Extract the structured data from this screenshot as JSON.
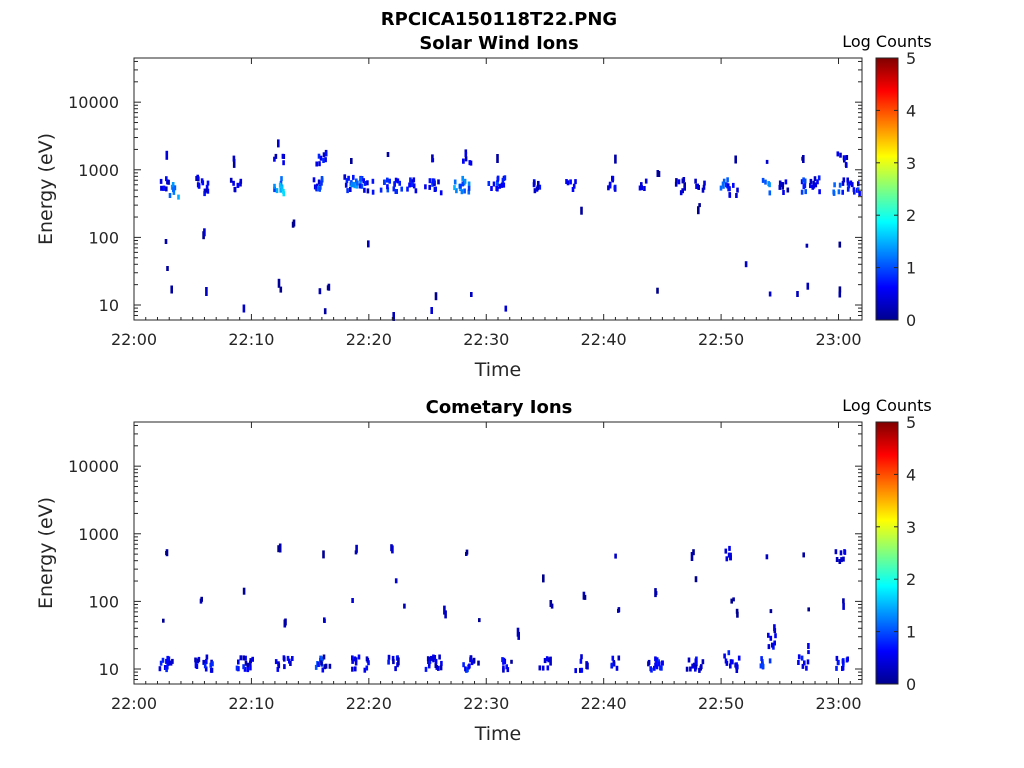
{
  "figure_title": "RPCICA150118T22.PNG",
  "chart_data": [
    {
      "type": "heatmap",
      "title": "Solar Wind Ions",
      "xlabel": "Time",
      "ylabel": "Energy (eV)",
      "x_tick_labels": [
        "22:00",
        "22:10",
        "22:20",
        "22:30",
        "22:40",
        "22:50",
        "23:00"
      ],
      "x_tick_minutes": [
        0,
        10,
        20,
        30,
        40,
        50,
        60
      ],
      "xlim_minutes": [
        0,
        62
      ],
      "y_scale": "log",
      "y_tick_labels": [
        "10",
        "100",
        "1000",
        "10000"
      ],
      "y_tick_values": [
        10,
        100,
        1000,
        10000
      ],
      "ylim": [
        6,
        45000
      ],
      "colorbar": {
        "label": "Log Counts",
        "range": [
          0,
          5
        ],
        "tick_labels": [
          "0",
          "1",
          "2",
          "3",
          "4",
          "5"
        ],
        "colormap": "jet"
      },
      "grid": false,
      "blobs": [
        {
          "t": 2.6,
          "e": 600,
          "c": 0.5
        },
        {
          "t": 2.8,
          "e": 1500,
          "c": 0.3
        },
        {
          "t": 3.4,
          "e": 500,
          "c": 1.3
        },
        {
          "t": 5.4,
          "e": 620,
          "c": 0.4
        },
        {
          "t": 5.9,
          "e": 520,
          "c": 0.6
        },
        {
          "t": 6.1,
          "e": 430,
          "c": 0.2
        },
        {
          "t": 8.7,
          "e": 620,
          "c": 0.5
        },
        {
          "t": 8.6,
          "e": 1400,
          "c": 0.3
        },
        {
          "t": 12.2,
          "e": 600,
          "c": 1.1
        },
        {
          "t": 12.4,
          "e": 560,
          "c": 1.5
        },
        {
          "t": 12.4,
          "e": 1500,
          "c": 0.4
        },
        {
          "t": 12.3,
          "e": 2600,
          "c": 0.2
        },
        {
          "t": 15.5,
          "e": 600,
          "c": 0.6
        },
        {
          "t": 16.1,
          "e": 620,
          "c": 1.1
        },
        {
          "t": 16.0,
          "e": 1500,
          "c": 0.6
        },
        {
          "t": 18.3,
          "e": 620,
          "c": 0.6
        },
        {
          "t": 18.9,
          "e": 600,
          "c": 1.2
        },
        {
          "t": 19.4,
          "e": 600,
          "c": 0.9
        },
        {
          "t": 20.0,
          "e": 560,
          "c": 0.5
        },
        {
          "t": 18.6,
          "e": 1500,
          "c": 0.3
        },
        {
          "t": 21.4,
          "e": 620,
          "c": 0.8
        },
        {
          "t": 22.5,
          "e": 600,
          "c": 0.7
        },
        {
          "t": 23.6,
          "e": 620,
          "c": 0.6
        },
        {
          "t": 21.7,
          "e": 1500,
          "c": 0.3
        },
        {
          "t": 25.2,
          "e": 620,
          "c": 0.7
        },
        {
          "t": 25.9,
          "e": 560,
          "c": 0.5
        },
        {
          "t": 25.4,
          "e": 1500,
          "c": 0.3
        },
        {
          "t": 27.6,
          "e": 620,
          "c": 1.4
        },
        {
          "t": 28.2,
          "e": 560,
          "c": 1.1
        },
        {
          "t": 28.3,
          "e": 1450,
          "c": 0.4
        },
        {
          "t": 30.6,
          "e": 600,
          "c": 0.8
        },
        {
          "t": 31.3,
          "e": 600,
          "c": 0.6
        },
        {
          "t": 31.0,
          "e": 1400,
          "c": 0.2
        },
        {
          "t": 34.3,
          "e": 600,
          "c": 0.5
        },
        {
          "t": 37.2,
          "e": 560,
          "c": 0.4
        },
        {
          "t": 40.6,
          "e": 620,
          "c": 0.6
        },
        {
          "t": 41.1,
          "e": 1300,
          "c": 0.2
        },
        {
          "t": 43.5,
          "e": 580,
          "c": 0.5
        },
        {
          "t": 44.7,
          "e": 930,
          "c": 0.2
        },
        {
          "t": 46.5,
          "e": 580,
          "c": 0.4
        },
        {
          "t": 48.2,
          "e": 560,
          "c": 0.4
        },
        {
          "t": 50.3,
          "e": 600,
          "c": 1.0
        },
        {
          "t": 51.0,
          "e": 520,
          "c": 0.6
        },
        {
          "t": 51.2,
          "e": 1400,
          "c": 0.2
        },
        {
          "t": 53.8,
          "e": 560,
          "c": 1.1
        },
        {
          "t": 54.0,
          "e": 1400,
          "c": 0.3
        },
        {
          "t": 55.3,
          "e": 580,
          "c": 0.4
        },
        {
          "t": 57.2,
          "e": 560,
          "c": 0.8
        },
        {
          "t": 57.0,
          "e": 1450,
          "c": 0.3
        },
        {
          "t": 58.0,
          "e": 600,
          "c": 0.5
        },
        {
          "t": 60.0,
          "e": 520,
          "c": 1.1
        },
        {
          "t": 60.6,
          "e": 560,
          "c": 0.6
        },
        {
          "t": 61.4,
          "e": 520,
          "c": 0.7
        },
        {
          "t": 60.3,
          "e": 1450,
          "c": 0.4
        },
        {
          "t": 2.8,
          "e": 80,
          "c": 0.2
        },
        {
          "t": 2.9,
          "e": 33,
          "c": 0.2
        },
        {
          "t": 3.2,
          "e": 15,
          "c": 0.2
        },
        {
          "t": 6.2,
          "e": 15,
          "c": 0.2
        },
        {
          "t": 6.0,
          "e": 110,
          "c": 0.2
        },
        {
          "t": 9.3,
          "e": 8,
          "c": 0.2
        },
        {
          "t": 12.3,
          "e": 20,
          "c": 0.2
        },
        {
          "t": 12.6,
          "e": 15,
          "c": 0.2
        },
        {
          "t": 13.6,
          "e": 145,
          "c": 0.2
        },
        {
          "t": 15.8,
          "e": 15,
          "c": 0.2
        },
        {
          "t": 16.3,
          "e": 8,
          "c": 0.2
        },
        {
          "t": 16.6,
          "e": 17,
          "c": 0.2
        },
        {
          "t": 19.9,
          "e": 70,
          "c": 0.2
        },
        {
          "t": 22.1,
          "e": 7,
          "c": 0.2
        },
        {
          "t": 25.3,
          "e": 8,
          "c": 0.2
        },
        {
          "t": 25.8,
          "e": 15,
          "c": 0.2
        },
        {
          "t": 28.8,
          "e": 15,
          "c": 0.2
        },
        {
          "t": 31.7,
          "e": 8,
          "c": 0.2
        },
        {
          "t": 38.2,
          "e": 250,
          "c": 0.2
        },
        {
          "t": 44.6,
          "e": 15,
          "c": 0.2
        },
        {
          "t": 48.1,
          "e": 265,
          "c": 0.2
        },
        {
          "t": 52.1,
          "e": 40,
          "c": 0.2
        },
        {
          "t": 54.2,
          "e": 15,
          "c": 0.2
        },
        {
          "t": 56.6,
          "e": 15,
          "c": 0.2
        },
        {
          "t": 57.4,
          "e": 20,
          "c": 0.2
        },
        {
          "t": 57.3,
          "e": 68,
          "c": 0.2
        },
        {
          "t": 60.1,
          "e": 82,
          "c": 0.2
        },
        {
          "t": 60.1,
          "e": 15,
          "c": 0.2
        }
      ]
    },
    {
      "type": "heatmap",
      "title": "Cometary Ions",
      "xlabel": "Time",
      "ylabel": "Energy (eV)",
      "x_tick_labels": [
        "22:00",
        "22:10",
        "22:20",
        "22:30",
        "22:40",
        "22:50",
        "23:00"
      ],
      "x_tick_minutes": [
        0,
        10,
        20,
        30,
        40,
        50,
        60
      ],
      "xlim_minutes": [
        0,
        62
      ],
      "y_scale": "log",
      "y_tick_labels": [
        "10",
        "100",
        "1000",
        "10000"
      ],
      "y_tick_values": [
        10,
        100,
        1000,
        10000
      ],
      "ylim": [
        6,
        45000
      ],
      "colorbar": {
        "label": "Log Counts",
        "range": [
          0,
          5
        ],
        "tick_labels": [
          "0",
          "1",
          "2",
          "3",
          "4",
          "5"
        ],
        "colormap": "jet"
      },
      "grid": false,
      "blobs": [
        {
          "t": 2.4,
          "e": 12,
          "c": 0.6
        },
        {
          "t": 3.1,
          "e": 12,
          "c": 0.5
        },
        {
          "t": 5.6,
          "e": 12,
          "c": 0.5
        },
        {
          "t": 6.3,
          "e": 12,
          "c": 0.6
        },
        {
          "t": 9.1,
          "e": 12,
          "c": 0.6
        },
        {
          "t": 9.7,
          "e": 12,
          "c": 0.4
        },
        {
          "t": 12.5,
          "e": 12,
          "c": 0.5
        },
        {
          "t": 13.1,
          "e": 12,
          "c": 0.5
        },
        {
          "t": 15.9,
          "e": 12,
          "c": 0.9
        },
        {
          "t": 16.4,
          "e": 12,
          "c": 0.4
        },
        {
          "t": 19.0,
          "e": 12,
          "c": 0.6
        },
        {
          "t": 19.6,
          "e": 12,
          "c": 0.5
        },
        {
          "t": 22.1,
          "e": 12,
          "c": 0.5
        },
        {
          "t": 22.6,
          "e": 12,
          "c": 0.3
        },
        {
          "t": 25.3,
          "e": 12,
          "c": 0.5
        },
        {
          "t": 25.8,
          "e": 12,
          "c": 0.4
        },
        {
          "t": 28.4,
          "e": 12,
          "c": 0.7
        },
        {
          "t": 29.0,
          "e": 12,
          "c": 0.4
        },
        {
          "t": 31.7,
          "e": 12,
          "c": 0.5
        },
        {
          "t": 32.2,
          "e": 12,
          "c": 0.3
        },
        {
          "t": 35.0,
          "e": 12,
          "c": 0.5
        },
        {
          "t": 35.5,
          "e": 12,
          "c": 0.3
        },
        {
          "t": 38.0,
          "e": 12,
          "c": 0.5
        },
        {
          "t": 38.6,
          "e": 12,
          "c": 0.3
        },
        {
          "t": 41.1,
          "e": 12,
          "c": 0.5
        },
        {
          "t": 44.2,
          "e": 12,
          "c": 0.5
        },
        {
          "t": 44.8,
          "e": 12,
          "c": 0.7
        },
        {
          "t": 47.5,
          "e": 12,
          "c": 0.5
        },
        {
          "t": 48.1,
          "e": 12,
          "c": 0.4
        },
        {
          "t": 50.6,
          "e": 14,
          "c": 0.6
        },
        {
          "t": 51.2,
          "e": 12,
          "c": 0.5
        },
        {
          "t": 53.8,
          "e": 12,
          "c": 0.8
        },
        {
          "t": 54.4,
          "e": 25,
          "c": 0.5
        },
        {
          "t": 57.0,
          "e": 12,
          "c": 0.6
        },
        {
          "t": 57.5,
          "e": 20,
          "c": 0.3
        },
        {
          "t": 60.0,
          "e": 12,
          "c": 0.7
        },
        {
          "t": 60.6,
          "e": 12,
          "c": 0.5
        },
        {
          "t": 2.8,
          "e": 480,
          "c": 0.2
        },
        {
          "t": 12.4,
          "e": 560,
          "c": 0.2
        },
        {
          "t": 16.1,
          "e": 560,
          "c": 0.2
        },
        {
          "t": 18.9,
          "e": 560,
          "c": 0.2
        },
        {
          "t": 22.0,
          "e": 560,
          "c": 0.2
        },
        {
          "t": 28.3,
          "e": 560,
          "c": 0.3
        },
        {
          "t": 41.0,
          "e": 500,
          "c": 0.2
        },
        {
          "t": 47.6,
          "e": 480,
          "c": 0.2
        },
        {
          "t": 50.8,
          "e": 520,
          "c": 0.4
        },
        {
          "t": 54.0,
          "e": 500,
          "c": 0.2
        },
        {
          "t": 57.1,
          "e": 500,
          "c": 0.3
        },
        {
          "t": 60.2,
          "e": 480,
          "c": 0.4
        },
        {
          "t": 2.5,
          "e": 55,
          "c": 0.2
        },
        {
          "t": 5.8,
          "e": 110,
          "c": 0.2
        },
        {
          "t": 9.4,
          "e": 160,
          "c": 0.2
        },
        {
          "t": 12.9,
          "e": 45,
          "c": 0.2
        },
        {
          "t": 16.3,
          "e": 55,
          "c": 0.2
        },
        {
          "t": 18.7,
          "e": 100,
          "c": 0.2
        },
        {
          "t": 22.3,
          "e": 180,
          "c": 0.2
        },
        {
          "t": 23.1,
          "e": 90,
          "c": 0.2
        },
        {
          "t": 26.5,
          "e": 70,
          "c": 0.2
        },
        {
          "t": 29.5,
          "e": 55,
          "c": 0.2
        },
        {
          "t": 32.8,
          "e": 35,
          "c": 0.2
        },
        {
          "t": 34.9,
          "e": 200,
          "c": 0.2
        },
        {
          "t": 35.6,
          "e": 90,
          "c": 0.2
        },
        {
          "t": 38.4,
          "e": 110,
          "c": 0.2
        },
        {
          "t": 41.3,
          "e": 80,
          "c": 0.2
        },
        {
          "t": 44.5,
          "e": 140,
          "c": 0.2
        },
        {
          "t": 47.8,
          "e": 240,
          "c": 0.2
        },
        {
          "t": 51.0,
          "e": 110,
          "c": 0.2
        },
        {
          "t": 51.4,
          "e": 70,
          "c": 0.2
        },
        {
          "t": 54.2,
          "e": 70,
          "c": 0.3
        },
        {
          "t": 54.6,
          "e": 40,
          "c": 0.3
        },
        {
          "t": 57.4,
          "e": 80,
          "c": 0.2
        },
        {
          "t": 60.5,
          "e": 95,
          "c": 0.2
        }
      ]
    }
  ]
}
